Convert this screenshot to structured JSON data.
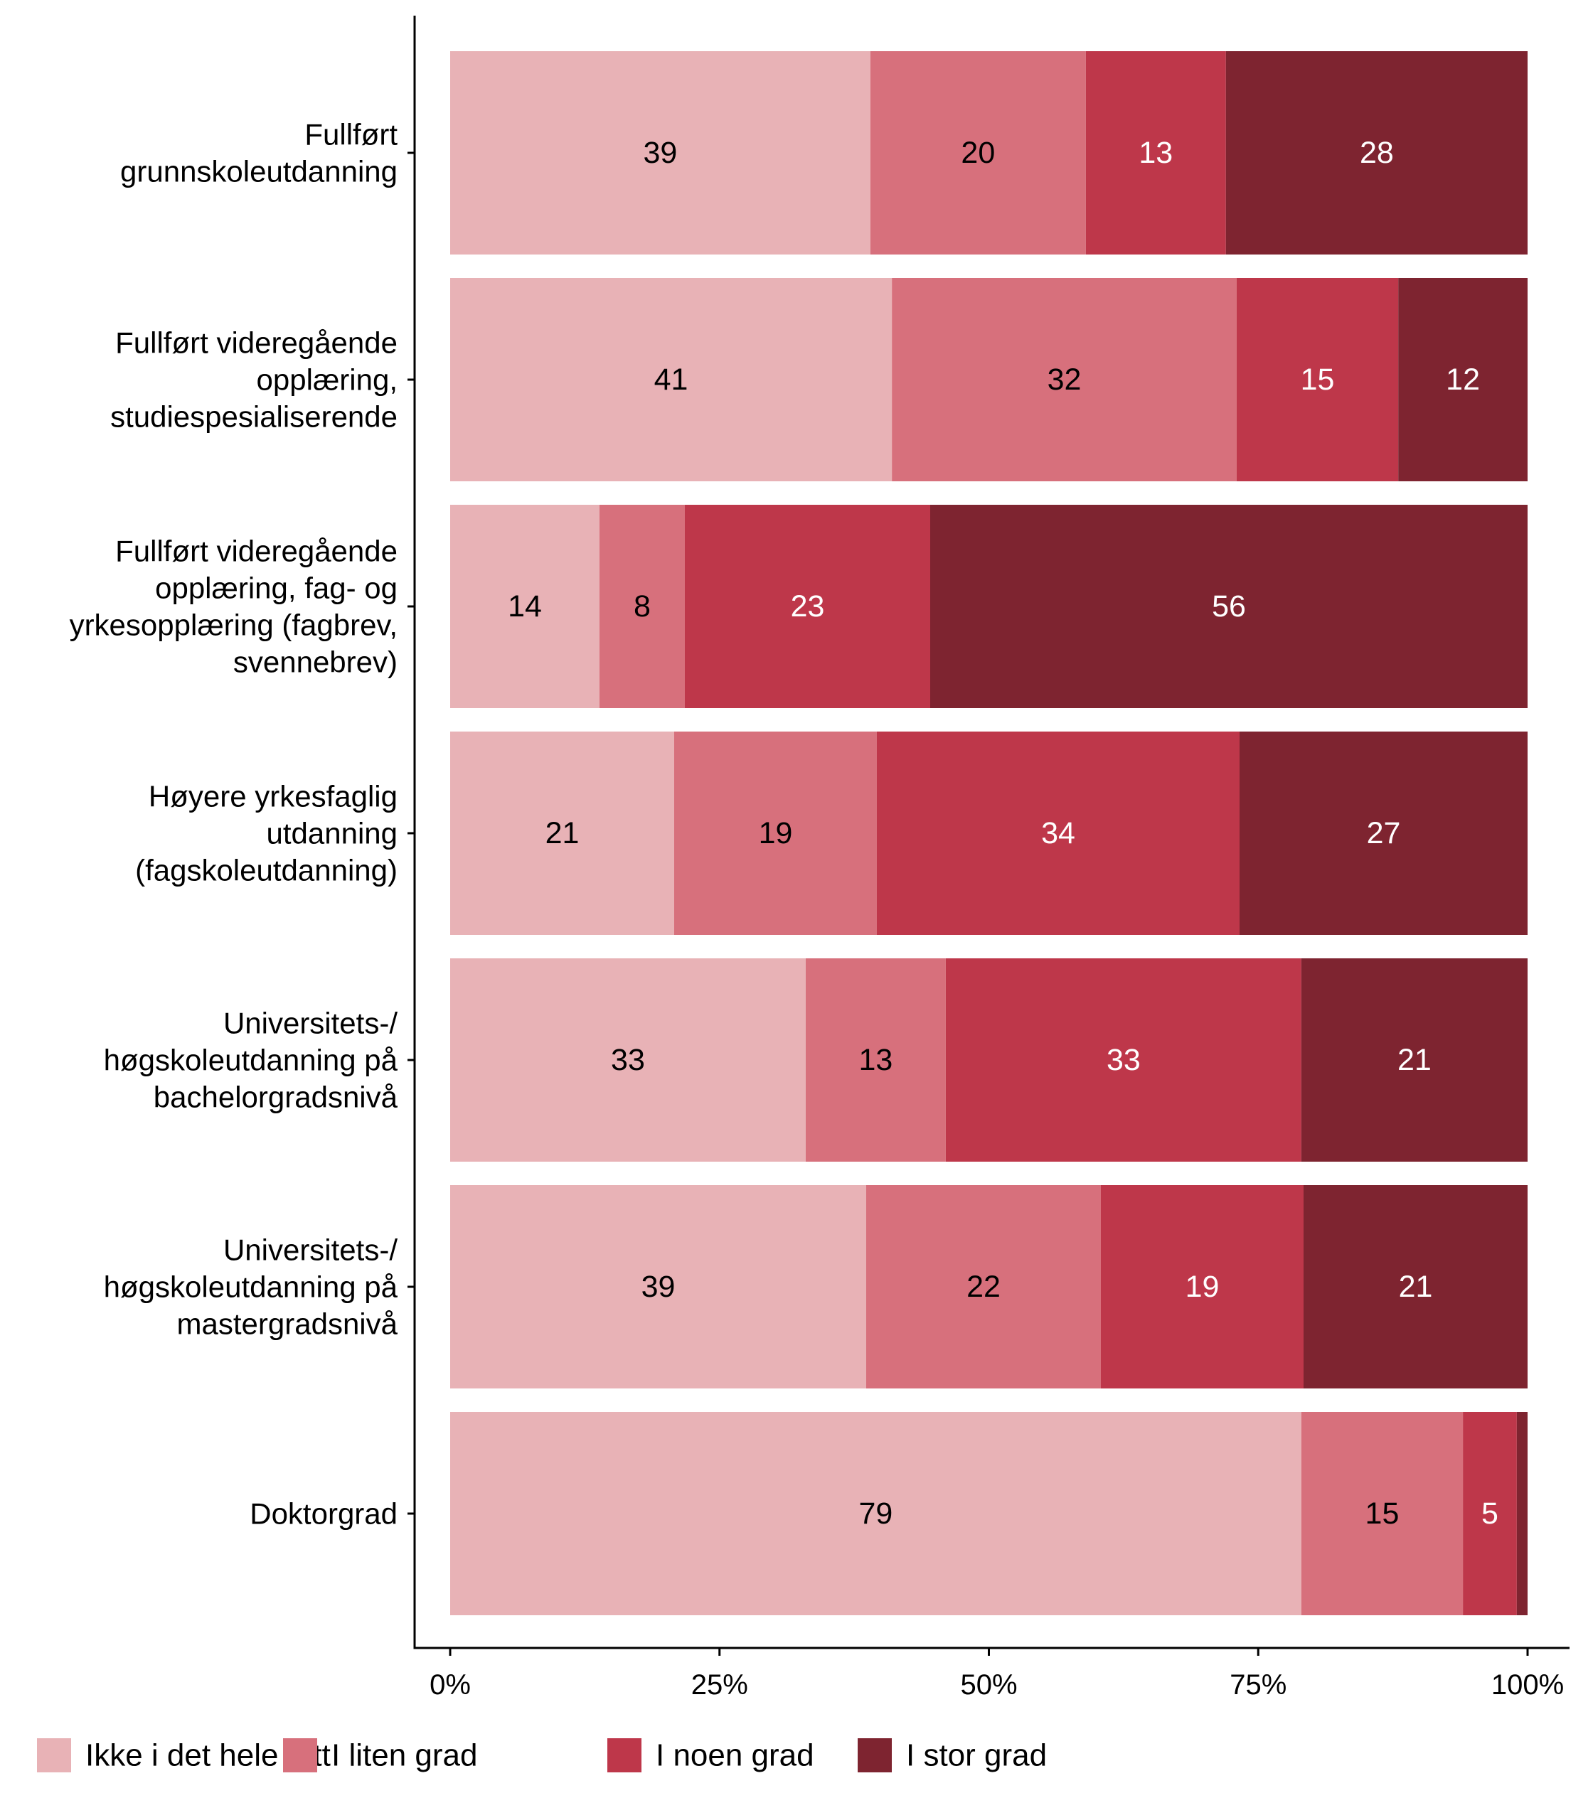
{
  "chart_data": {
    "type": "bar",
    "orientation": "horizontal",
    "stacked": true,
    "normalized_percent": true,
    "categories": [
      [
        "Fullført",
        "grunnskoleutdanning"
      ],
      [
        "Fullført videregående",
        "opplæring,",
        "studiespesialiserende"
      ],
      [
        "Fullført videregående",
        "opplæring, fag- og",
        "yrkesopplæring (fagbrev,",
        "svennebrev)"
      ],
      [
        "Høyere yrkesfaglig",
        "utdanning",
        "(fagskoleutdanning)"
      ],
      [
        "Universitets-/",
        "høgskoleutdanning på",
        "bachelorgradsnivå"
      ],
      [
        "Universitets-/",
        "høgskoleutdanning på",
        "mastergradsnivå"
      ],
      [
        "Doktorgrad"
      ]
    ],
    "series": [
      {
        "name": "Ikke i det hele tatt",
        "color": "#E8B2B6",
        "label_color": "#000000",
        "values": [
          39,
          41,
          14,
          21,
          33,
          39,
          79
        ],
        "labels": [
          "39",
          "41",
          "14",
          "21",
          "33",
          "39",
          "79"
        ]
      },
      {
        "name": "I liten grad",
        "color": "#D7707C",
        "label_color": "#000000",
        "values": [
          20,
          32,
          8,
          19,
          13,
          22,
          15
        ],
        "labels": [
          "20",
          "32",
          "8",
          "19",
          "13",
          "22",
          "15"
        ]
      },
      {
        "name": "I noen grad",
        "color": "#BE374A",
        "label_color": "#FFFFFF",
        "values": [
          13,
          15,
          23,
          34,
          33,
          19,
          5
        ],
        "labels": [
          "13",
          "15",
          "23",
          "34",
          "33",
          "19",
          "5"
        ]
      },
      {
        "name": "I stor grad",
        "color": "#7E2430",
        "label_color": "#FFFFFF",
        "values": [
          28,
          12,
          56,
          27,
          21,
          21,
          1
        ],
        "labels": [
          "28",
          "12",
          "56",
          "27",
          "21",
          "21",
          ""
        ]
      }
    ],
    "xlim": [
      0,
      100
    ],
    "xticks": [
      0,
      25,
      50,
      75,
      100
    ],
    "xtick_labels": [
      "0%",
      "25%",
      "50%",
      "75%",
      "100%"
    ],
    "title": "",
    "xlabel": "",
    "ylabel": "",
    "grid": false,
    "legend_position": "bottom-left"
  }
}
